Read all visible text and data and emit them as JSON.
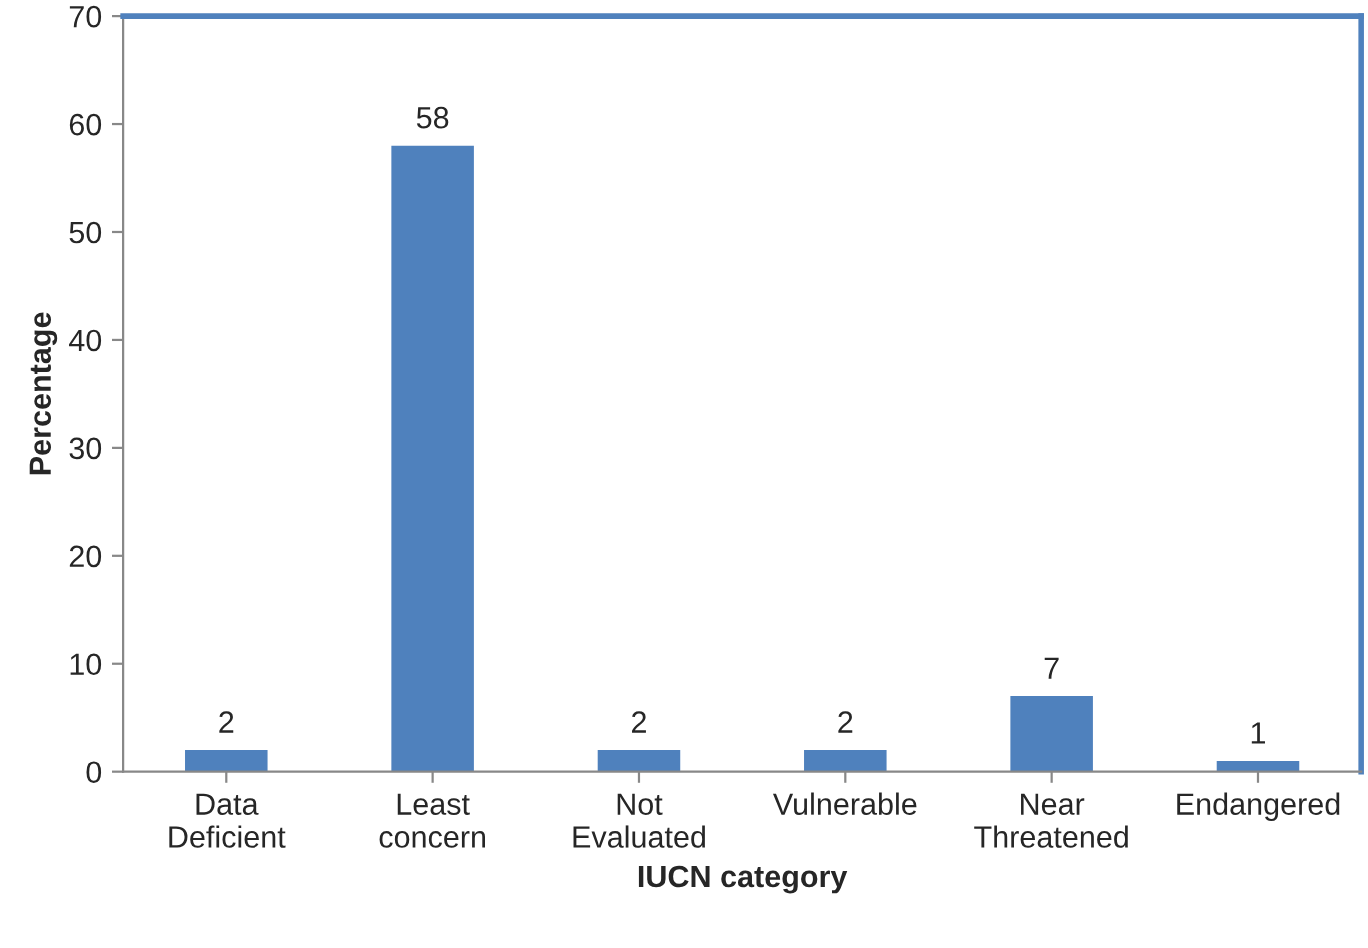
{
  "chart_data": {
    "type": "bar",
    "xlabel": "IUCN category",
    "ylabel": "Percentage",
    "categories": [
      "Data\nDeficient",
      "Least\nconcern",
      "Not\nEvaluated",
      "Vulnerable",
      "Near\nThreatened",
      "Endangered"
    ],
    "values": [
      2,
      58,
      2,
      2,
      7,
      1
    ],
    "color": "#4f81bd",
    "ylim": [
      0,
      70
    ],
    "yticks": [
      0,
      10,
      20,
      30,
      40,
      50,
      60,
      70
    ],
    "data_labels": true,
    "grid": false,
    "legend": false
  }
}
